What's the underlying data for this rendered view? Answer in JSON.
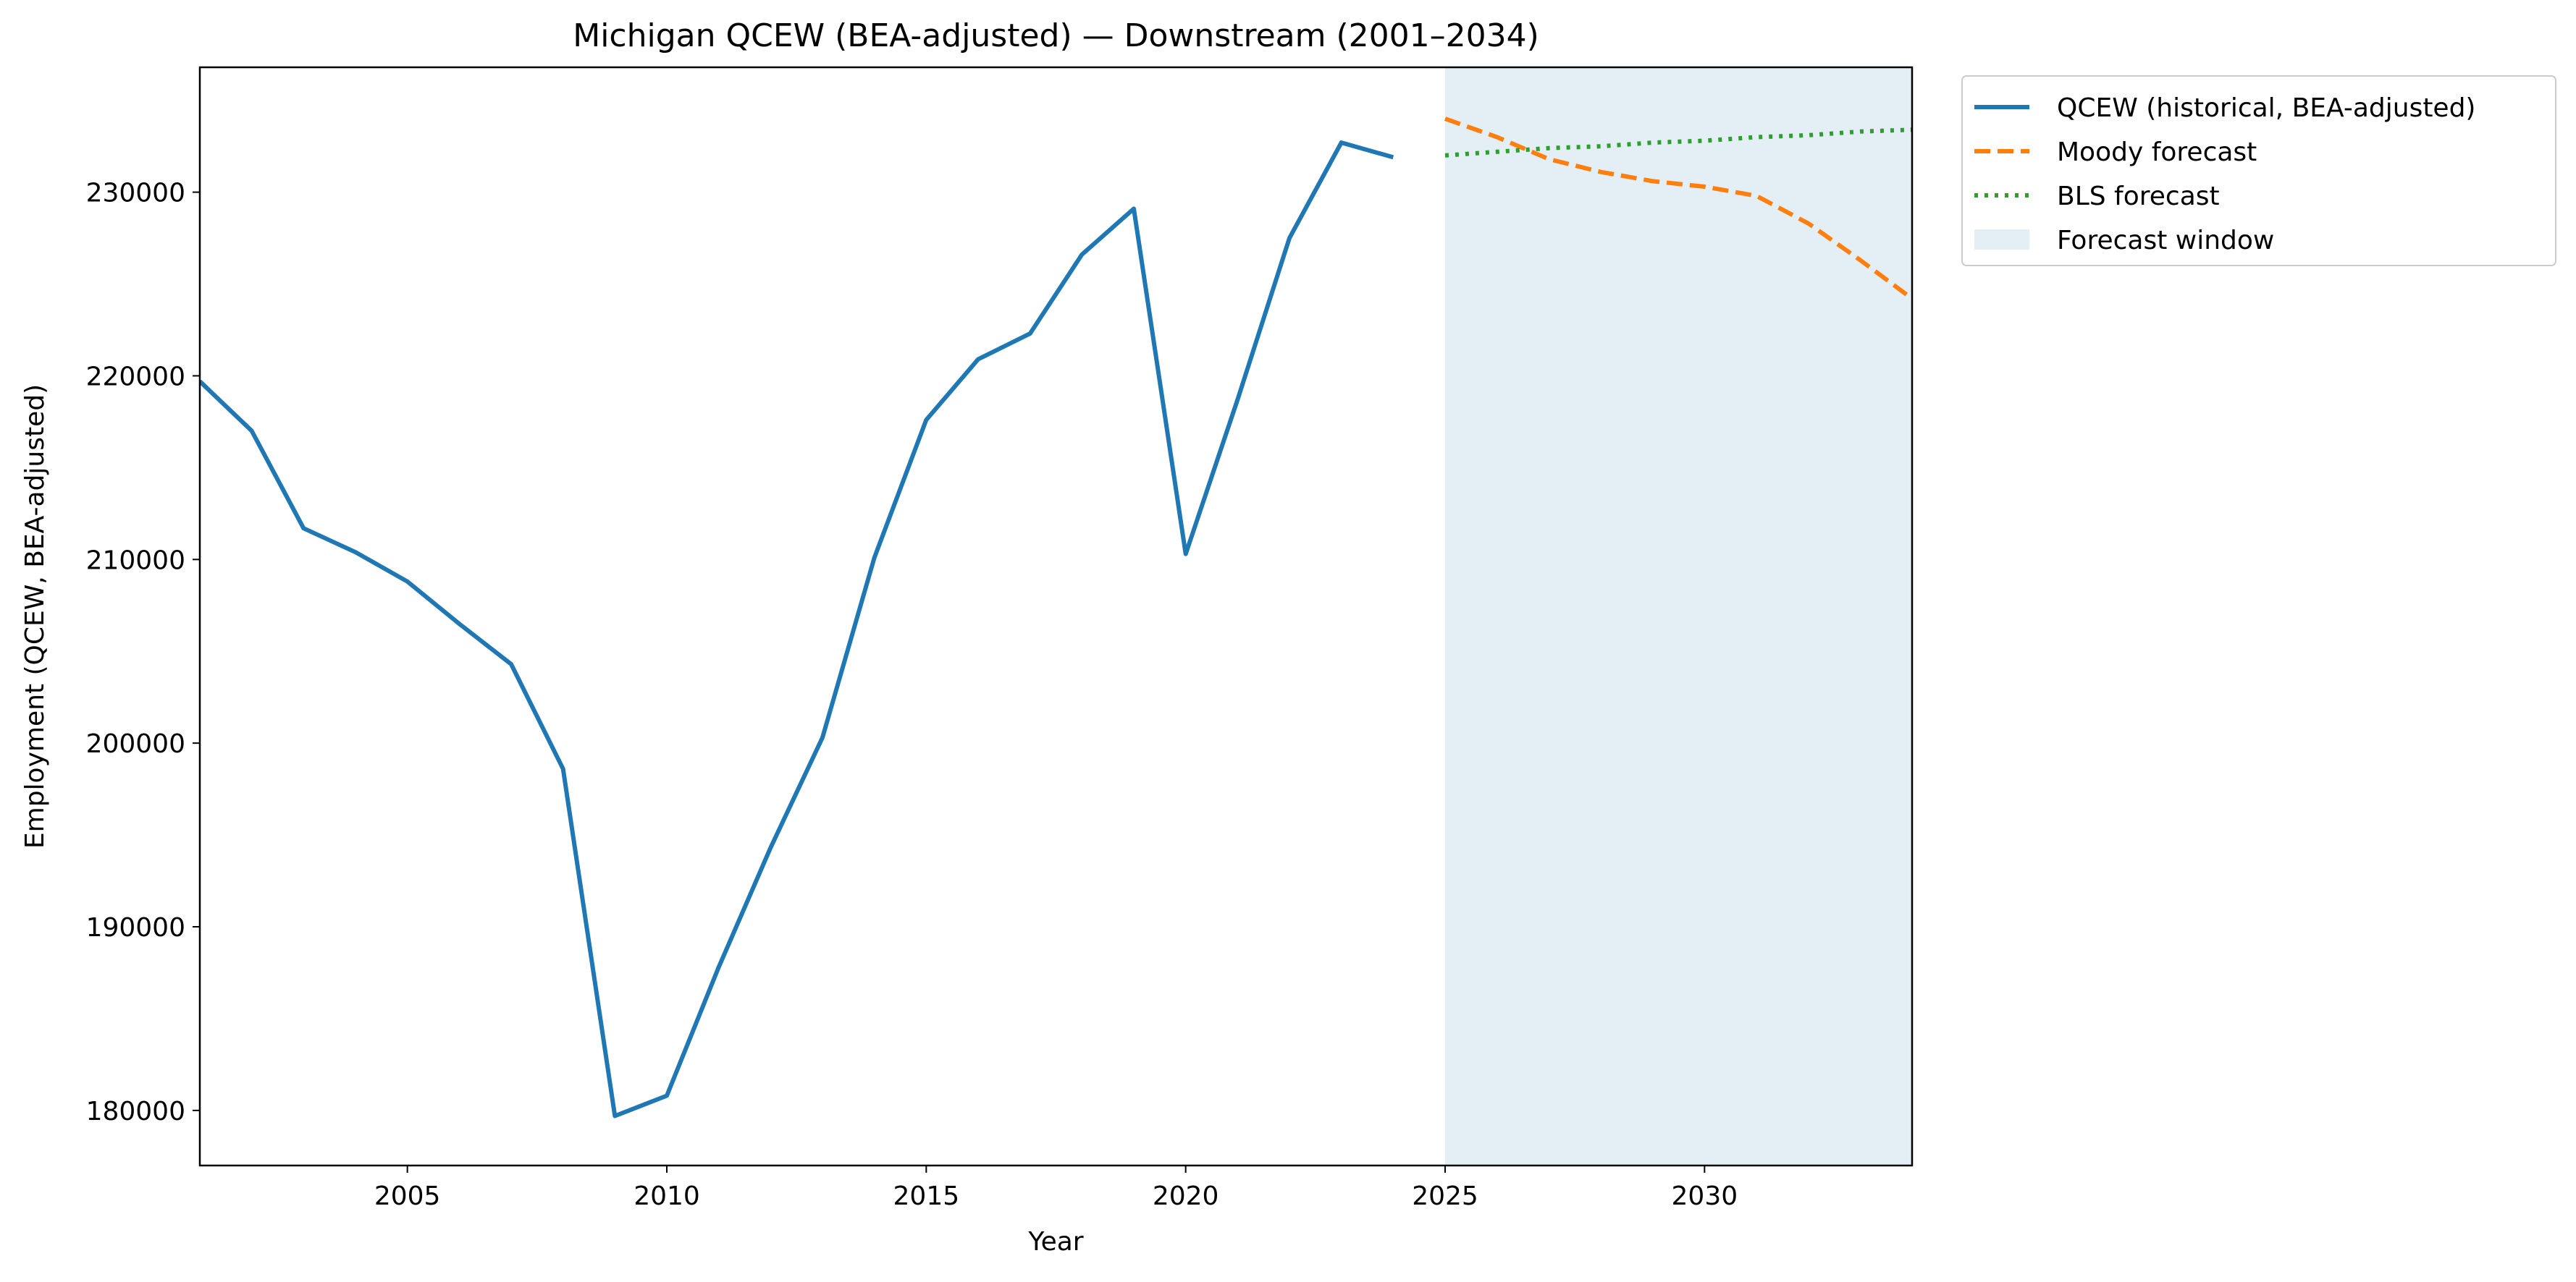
{
  "chart_data": {
    "type": "line",
    "title": "Michigan QCEW (BEA-adjusted) — Downstream (2001–2034)",
    "xlabel": "Year",
    "ylabel": "Employment (QCEW, BEA-adjusted)",
    "xlim": [
      2001,
      2034
    ],
    "ylim": [
      177000,
      236800
    ],
    "x_ticks": [
      2005,
      2010,
      2015,
      2020,
      2025,
      2030
    ],
    "y_ticks": [
      180000,
      190000,
      200000,
      210000,
      220000,
      230000
    ],
    "grid": false,
    "legend_position": "outside top-right",
    "forecast_window": {
      "label": "Forecast window",
      "start": 2025,
      "end": 2034,
      "color": "#e3eef5"
    },
    "series": [
      {
        "name": "QCEW (historical, BEA-adjusted)",
        "style": "solid",
        "color": "#1f77b4",
        "x": [
          2001,
          2002,
          2003,
          2004,
          2005,
          2006,
          2007,
          2008,
          2009,
          2010,
          2011,
          2012,
          2013,
          2014,
          2015,
          2016,
          2017,
          2018,
          2019,
          2020,
          2021,
          2022,
          2023,
          2024
        ],
        "values": [
          219700,
          217000,
          211700,
          210400,
          208800,
          206500,
          204300,
          198600,
          179700,
          180800,
          187800,
          194300,
          200300,
          210100,
          217600,
          220900,
          222300,
          226600,
          229100,
          210300,
          218700,
          227500,
          232700,
          231900
        ]
      },
      {
        "name": "Moody forecast",
        "style": "dashed",
        "color": "#ff7f0e",
        "x": [
          2025,
          2026,
          2027,
          2028,
          2029,
          2030,
          2031,
          2032,
          2033,
          2034
        ],
        "values": [
          234000,
          233000,
          231800,
          231100,
          230600,
          230300,
          229800,
          228300,
          226300,
          224200
        ]
      },
      {
        "name": "BLS forecast",
        "style": "dotted",
        "color": "#2ca02c",
        "x": [
          2025,
          2026,
          2027,
          2028,
          2029,
          2030,
          2031,
          2032,
          2033,
          2034
        ],
        "values": [
          232000,
          232200,
          232400,
          232500,
          232700,
          232800,
          233000,
          233100,
          233300,
          233400
        ]
      }
    ]
  }
}
